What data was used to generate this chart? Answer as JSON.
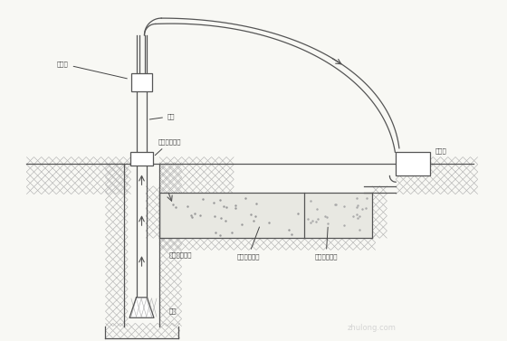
{
  "bg_color": "#f8f8f4",
  "line_color": "#555555",
  "labels": {
    "water_faucet": "水龙头",
    "drill_rod": "钒杆",
    "drill_machine": "钒机压钒装置",
    "mud_pump": "泥浆泵",
    "settling_pool": "沉淤池及沉渣",
    "mud_pool": "泥浆池及泥浆",
    "mud_circulation": "泥浆循环方向",
    "drill_bit": "钒头"
  }
}
